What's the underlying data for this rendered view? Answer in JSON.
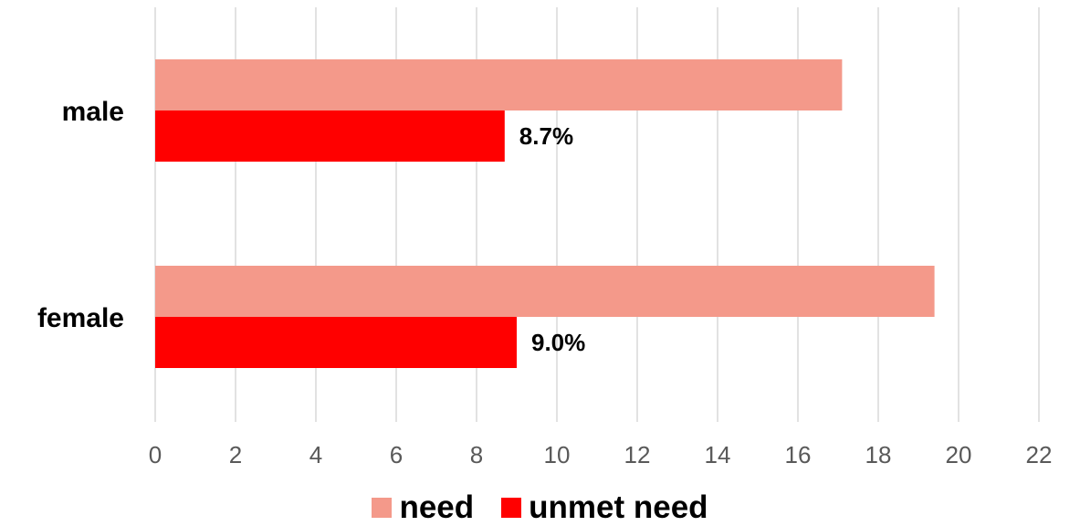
{
  "chart_data": {
    "type": "bar",
    "orientation": "horizontal",
    "categories": [
      "male",
      "female"
    ],
    "series": [
      {
        "name": "need",
        "values": [
          17.1,
          19.4
        ],
        "color": "#F4998A"
      },
      {
        "name": "unmet need",
        "values": [
          8.7,
          9.0
        ],
        "color": "#FF0000",
        "data_labels": [
          "8.7%",
          "9.0%"
        ]
      }
    ],
    "xlim": [
      0,
      22
    ],
    "xticks": [
      "0",
      "2",
      "4",
      "6",
      "8",
      "10",
      "12",
      "14",
      "16",
      "18",
      "20",
      "22"
    ],
    "grid": true,
    "legend_position": "bottom"
  }
}
